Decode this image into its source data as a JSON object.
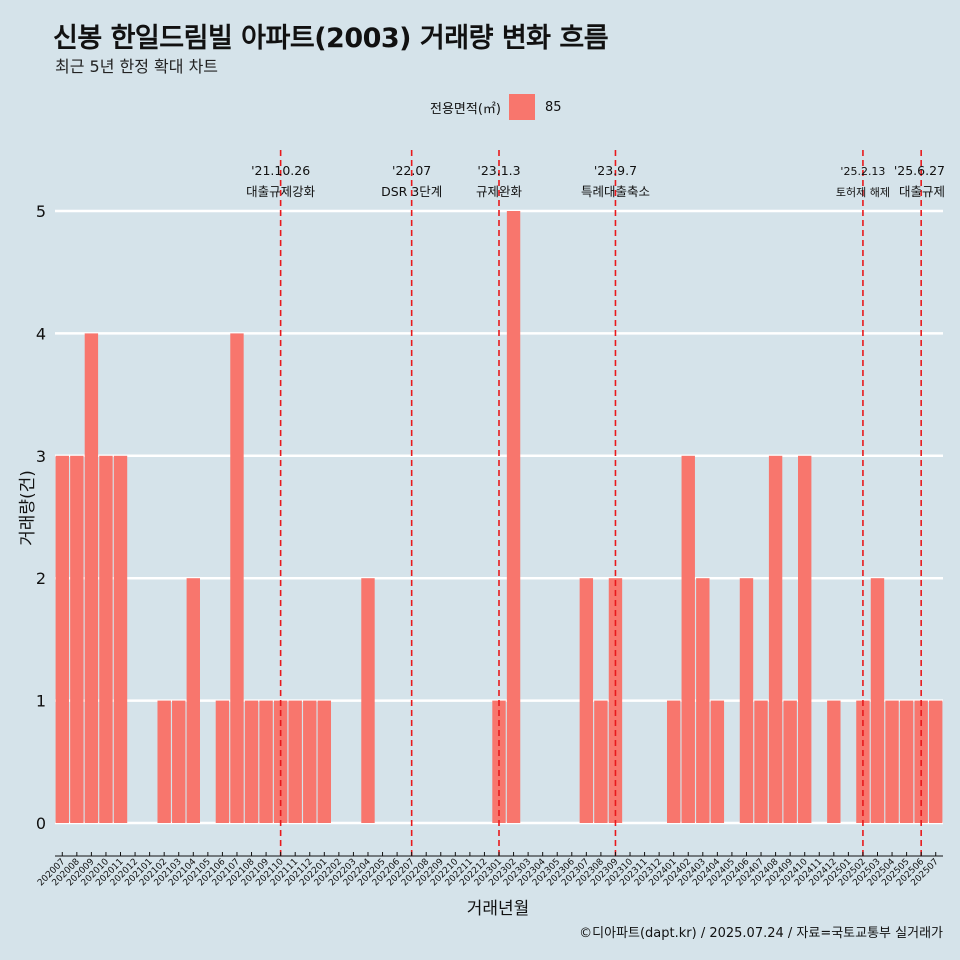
{
  "header": {
    "title": "신봉 한일드림빌 아파트(2003) 거래량 변화 흐름",
    "subtitle": "최근 5년 한정 확대 차트"
  },
  "legend": {
    "title": "전용면적(㎡)",
    "item": "85"
  },
  "caption": "©디아파트(dapt.kr) / 2025.07.24 / 자료=국토교통부 실거래가",
  "colors": {
    "bar": "#f8766d",
    "background": "#d5e3ea",
    "event_line": "#e8191c",
    "grid": "#ffffff"
  },
  "chart_data": {
    "type": "bar",
    "xlabel": "거래년월",
    "ylabel": "거래량(건)",
    "ylim": [
      0,
      5
    ],
    "y_ticks": [
      0,
      1,
      2,
      3,
      4,
      5
    ],
    "grid": true,
    "legend_position": "top",
    "series": [
      {
        "name": "85"
      }
    ],
    "categories": [
      "202007",
      "202008",
      "202009",
      "202010",
      "202011",
      "202012",
      "202101",
      "202102",
      "202103",
      "202104",
      "202105",
      "202106",
      "202107",
      "202108",
      "202109",
      "202110",
      "202111",
      "202112",
      "202201",
      "202202",
      "202203",
      "202204",
      "202205",
      "202206",
      "202207",
      "202208",
      "202209",
      "202210",
      "202211",
      "202212",
      "202301",
      "202302",
      "202303",
      "202304",
      "202305",
      "202306",
      "202307",
      "202308",
      "202309",
      "202310",
      "202311",
      "202312",
      "202401",
      "202402",
      "202403",
      "202404",
      "202405",
      "202406",
      "202407",
      "202408",
      "202409",
      "202410",
      "202411",
      "202412",
      "202501",
      "202502",
      "202503",
      "202504",
      "202505",
      "202506",
      "202507"
    ],
    "values": [
      3,
      3,
      4,
      3,
      3,
      0,
      0,
      1,
      1,
      2,
      0,
      1,
      4,
      1,
      1,
      1,
      1,
      1,
      1,
      0,
      0,
      2,
      0,
      0,
      0,
      0,
      0,
      0,
      0,
      0,
      1,
      5,
      0,
      0,
      0,
      0,
      2,
      1,
      2,
      0,
      0,
      0,
      1,
      3,
      2,
      1,
      0,
      2,
      1,
      3,
      1,
      3,
      0,
      1,
      0,
      1,
      2,
      1,
      1,
      1,
      1
    ],
    "events": [
      {
        "category": "202110",
        "date": "'21.10.26",
        "label": "대출규제강화"
      },
      {
        "category": "202207",
        "date": "'22.07",
        "label": "DSR 3단계"
      },
      {
        "category": "202301",
        "date": "'23.1.3",
        "label": "규제완화"
      },
      {
        "category": "202309",
        "date": "'23.9.7",
        "label": "특례대출축소"
      },
      {
        "category": "202502",
        "date": "'25.2.13",
        "label": "토허제 해제"
      },
      {
        "category": "202506",
        "date": "'25.6.27",
        "label": "대출규제"
      }
    ]
  }
}
